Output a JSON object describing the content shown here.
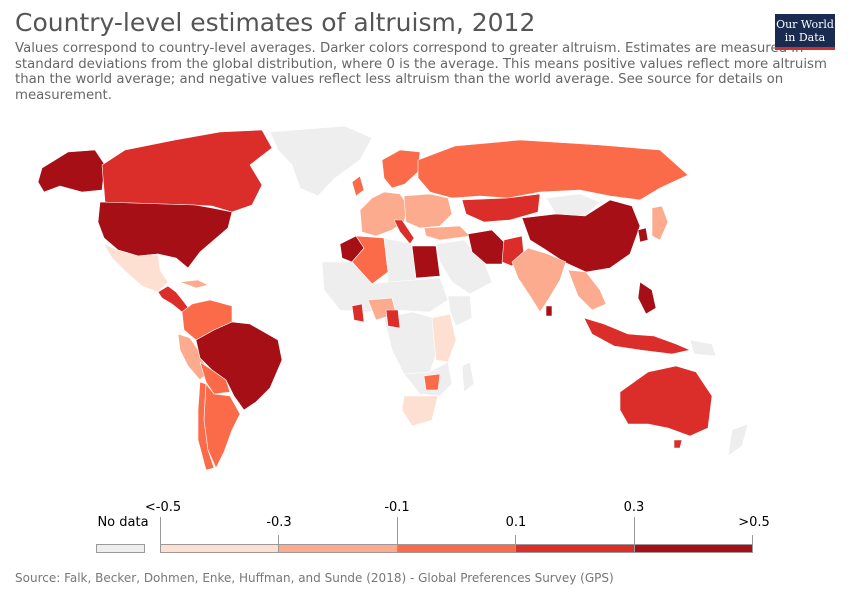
{
  "header": {
    "title": "Country-level estimates of altruism, 2012",
    "subtitle": "Values correspond to country-level averages. Darker colors correspond to greater altruism. Estimates are measured in standard deviations from the global distribution, where 0 is the average. This means positive values reflect more altruism than the world average; and negative values reflect less altruism than the world average. See source for details on measurement.",
    "logo_line1": "Our World",
    "logo_line2": "in Data"
  },
  "legend": {
    "no_data_label": "No data",
    "no_data_color": "#eeeeee",
    "breaks": [
      "<-0.5",
      "-0.3",
      "-0.1",
      "0.1",
      "0.3",
      ">0.5"
    ],
    "colors": [
      "#fde0d2",
      "#fcab8e",
      "#fb6b4a",
      "#db2d2a",
      "#a50f15"
    ]
  },
  "colors": {
    "no_data": "#eeeeee",
    "c1": "#fde0d2",
    "c2": "#fcab8e",
    "c3": "#fb6b4a",
    "c4": "#db2d2a",
    "c5": "#a50f15"
  },
  "source": "Source: Falk, Becker, Dohmen, Enke, Huffman, and Sunde (2018) - Global Preferences Survey (GPS)"
}
